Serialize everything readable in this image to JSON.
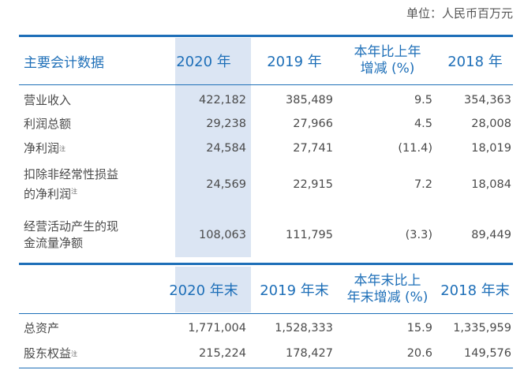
{
  "unit": "单位：人民币百万元",
  "header1": {
    "label": "主要会计数据",
    "y2020": "2020 年",
    "y2019": "2019 年",
    "change_line1": "本年比上年",
    "change_line2": "增减 (%)",
    "y2018": "2018 年"
  },
  "rows1": [
    {
      "label1": "营业收入",
      "label2": "",
      "note": "",
      "v2020": "422,182",
      "v2019": "385,489",
      "change": "9.5",
      "v2018": "354,363"
    },
    {
      "label1": "利润总额",
      "label2": "",
      "note": "",
      "v2020": "29,238",
      "v2019": "27,966",
      "change": "4.5",
      "v2018": "28,008"
    },
    {
      "label1": "净利润",
      "label2": "",
      "note": "注",
      "v2020": "24,584",
      "v2019": "27,741",
      "change": "(11.4)",
      "v2018": "18,019"
    },
    {
      "label1": "扣除非经常性损益",
      "label2": "的净利润",
      "note": "注",
      "v2020": "24,569",
      "v2019": "22,915",
      "change": "7.2",
      "v2018": "18,084"
    },
    {
      "label1": "经营活动产生的现",
      "label2": "金流量净额",
      "note": "",
      "v2020": "108,063",
      "v2019": "111,795",
      "change": "(3.3)",
      "v2018": "89,449"
    }
  ],
  "header2": {
    "y2020": "2020 年末",
    "y2019": "2019 年末",
    "change_line1": "本年末比上",
    "change_line2": "年末增减 (%)",
    "y2018": "2018 年末"
  },
  "rows2": [
    {
      "label1": "总资产",
      "note": "",
      "v2020": "1,771,004",
      "v2019": "1,528,333",
      "change": "15.9",
      "v2018": "1,335,959"
    },
    {
      "label1": "股东权益",
      "note": "注",
      "v2020": "215,224",
      "v2019": "178,427",
      "change": "20.6",
      "v2018": "149,576"
    }
  ]
}
